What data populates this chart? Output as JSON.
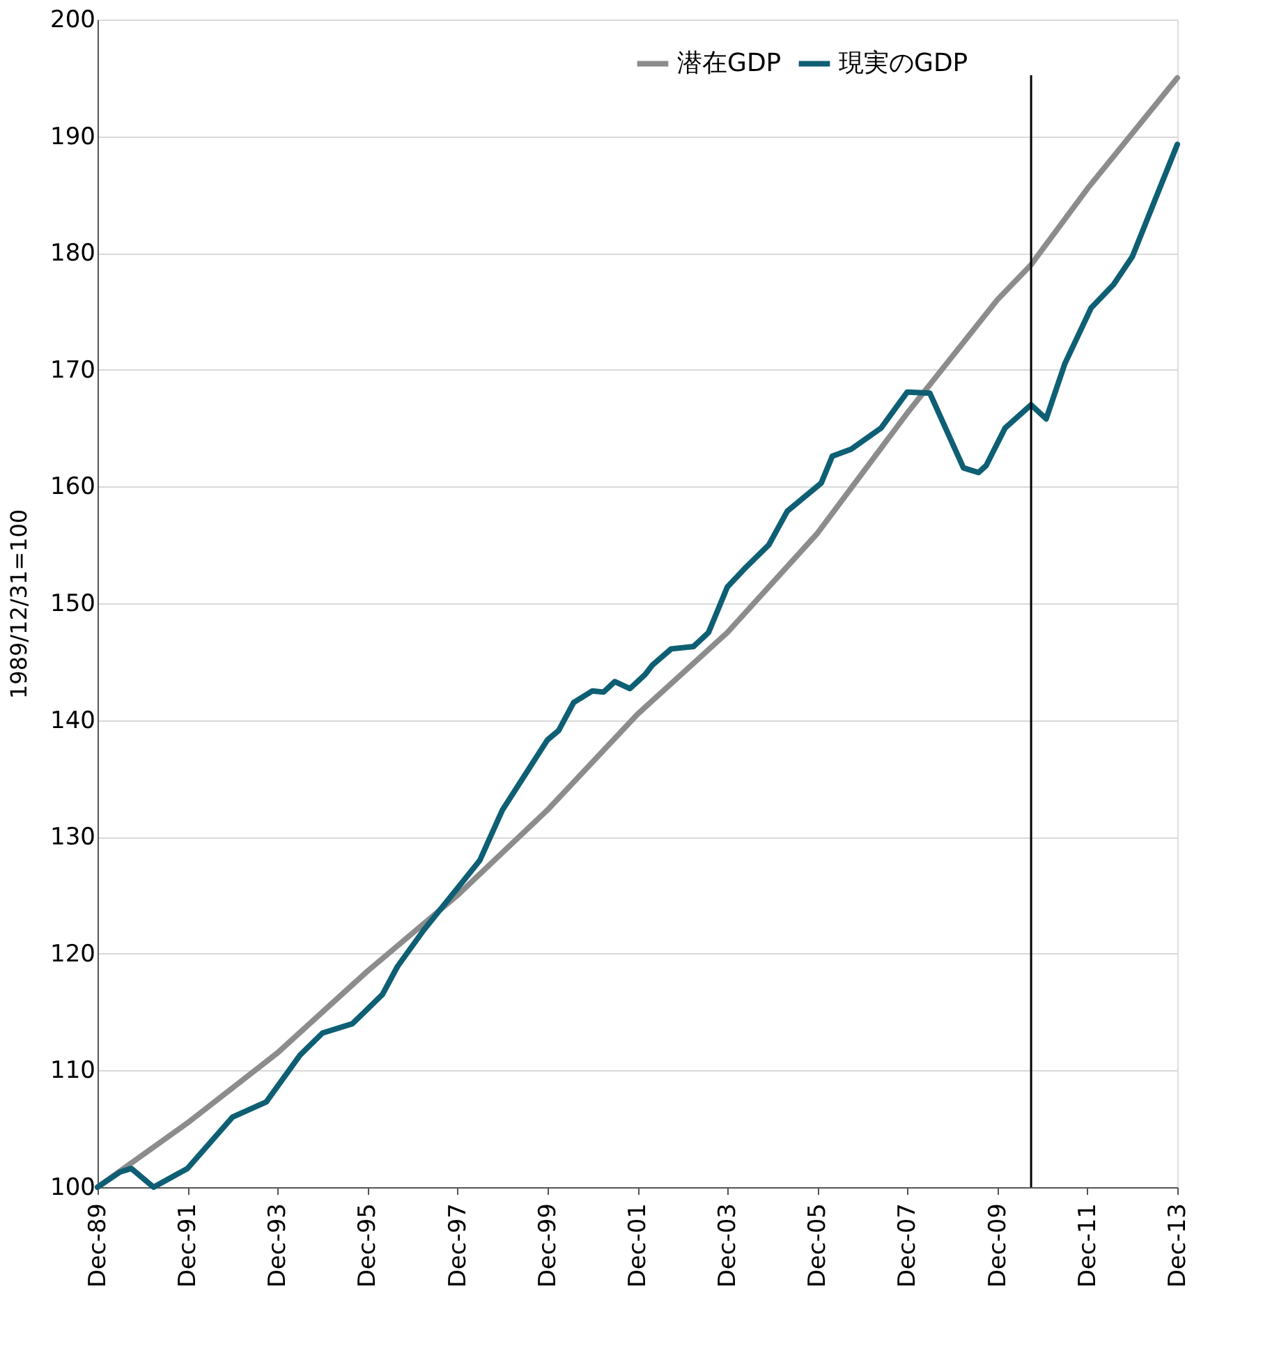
{
  "chart_data": {
    "type": "line",
    "ylabel": "1989/12/31=100",
    "xlim": [
      "1989-12",
      "2013-12"
    ],
    "xticks": [
      {
        "value": "1989-12",
        "label": "Dec-89"
      },
      {
        "value": "1991-12",
        "label": "Dec-91"
      },
      {
        "value": "1993-12",
        "label": "Dec-93"
      },
      {
        "value": "1995-12",
        "label": "Dec-95"
      },
      {
        "value": "1997-12",
        "label": "Dec-97"
      },
      {
        "value": "1999-12",
        "label": "Dec-99"
      },
      {
        "value": "2001-12",
        "label": "Dec-01"
      },
      {
        "value": "2003-12",
        "label": "Dec-03"
      },
      {
        "value": "2005-12",
        "label": "Dec-05"
      },
      {
        "value": "2007-12",
        "label": "Dec-07"
      },
      {
        "value": "2009-12",
        "label": "Dec-09"
      },
      {
        "value": "2011-12",
        "label": "Dec-11"
      },
      {
        "value": "2013-12",
        "label": "Dec-13"
      }
    ],
    "ylim": [
      100,
      200
    ],
    "yticks": [
      100,
      110,
      120,
      130,
      140,
      150,
      160,
      170,
      180,
      190,
      200
    ],
    "grid": "y",
    "legend": "top",
    "line_style": "solid",
    "marker": "none",
    "series": [
      {
        "name": "潜在GDP",
        "color": "#8c8c8c",
        "x": [
          "1989-12",
          "1991-12",
          "1993-12",
          "1995-12",
          "1997-12",
          "1999-12",
          "2001-12",
          "2003-12",
          "2005-12",
          "2007-12",
          "2009-12",
          "2010-09",
          "2011-12",
          "2013-12"
        ],
        "values": [
          100,
          105.5,
          111.5,
          118.5,
          125,
          132.3,
          140.5,
          147.5,
          156,
          166.3,
          176,
          179,
          185.5,
          195
        ]
      },
      {
        "name": "現実のGDP",
        "color": "#0e5f73",
        "x": [
          "1989-12",
          "1990-06",
          "1990-09",
          "1991-03",
          "1991-12",
          "1992-12",
          "1993-09",
          "1994-06",
          "1994-12",
          "1995-08",
          "1996-04",
          "1996-08",
          "1997-03",
          "1997-10",
          "1998-06",
          "1998-12",
          "1999-12",
          "2000-03",
          "2000-07",
          "2000-12",
          "2001-03",
          "2001-06",
          "2001-10",
          "2002-02",
          "2002-04",
          "2002-09",
          "2003-03",
          "2003-07",
          "2003-12",
          "2004-05",
          "2004-11",
          "2005-04",
          "2006-01",
          "2006-04",
          "2006-09",
          "2007-05",
          "2007-12",
          "2008-06",
          "2009-03",
          "2009-07",
          "2009-09",
          "2010-02",
          "2010-09",
          "2011-01",
          "2011-06",
          "2012-01",
          "2012-07",
          "2012-12",
          "2013-06",
          "2013-12"
        ],
        "values": [
          100,
          101.3,
          101.6,
          100,
          101.6,
          106,
          107.3,
          111.3,
          113.2,
          114,
          116.5,
          118.9,
          122,
          124.8,
          128,
          132.3,
          138.3,
          139.1,
          141.5,
          142.5,
          142.4,
          143.3,
          142.7,
          143.9,
          144.7,
          146.1,
          146.3,
          147.5,
          151.4,
          153.1,
          155,
          157.9,
          160.3,
          162.6,
          163.2,
          165,
          168.1,
          168,
          161.6,
          161.2,
          161.8,
          165,
          167,
          165.8,
          170.5,
          175.3,
          177.3,
          179.7,
          184.5,
          189.3
        ]
      }
    ],
    "ref_lines": [
      {
        "axis": "x",
        "value": "2010-09",
        "color": "#000000",
        "line_style": "solid"
      }
    ]
  }
}
